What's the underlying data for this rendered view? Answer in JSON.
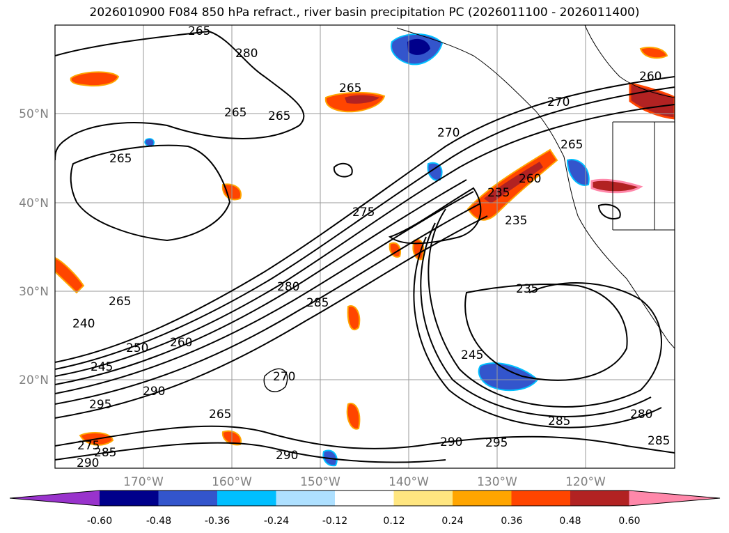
{
  "title": "2026010900 F084 850 hPa refract., river basin precipitation PC (2026011100 - 2026011400)",
  "map": {
    "lat_labels": [
      "50°N",
      "40°N",
      "30°N",
      "20°N"
    ],
    "lon_labels": [
      "170°W",
      "160°W",
      "150°W",
      "140°W",
      "130°W",
      "120°W"
    ],
    "contour_labels": [
      "265",
      "280",
      "265",
      "265",
      "265",
      "265",
      "270",
      "260",
      "270",
      "265",
      "260",
      "275",
      "235",
      "235",
      "280",
      "285",
      "235",
      "265",
      "240",
      "250",
      "260",
      "245",
      "290",
      "295",
      "270",
      "245",
      "285",
      "280",
      "265",
      "275",
      "285",
      "290",
      "295",
      "290",
      "285"
    ]
  },
  "colorbar": {
    "ticks": [
      "-0.60",
      "-0.48",
      "-0.36",
      "-0.24",
      "-0.12",
      "0.12",
      "0.24",
      "0.36",
      "0.48",
      "0.60"
    ],
    "colors": [
      "#9933cc",
      "#00008b",
      "#3355cc",
      "#00bfff",
      "#aee0ff",
      "#ffffff",
      "#ffe680",
      "#ffa500",
      "#ff4500",
      "#b22222",
      "#ff88aa"
    ]
  }
}
